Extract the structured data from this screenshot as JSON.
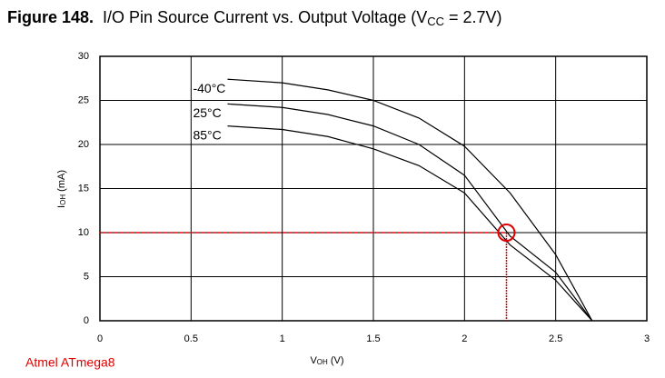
{
  "chart_data": {
    "type": "line",
    "title": {
      "label": "Figure 148.",
      "text": "I/O Pin Source Current vs. Output Voltage (V",
      "sub": "CC",
      "end": " = 2.7V)"
    },
    "x_label": {
      "text": "V",
      "sub": "OH",
      "end": " (V)"
    },
    "y_label": {
      "text": "I",
      "sub": "OH",
      "end": " (mA)"
    },
    "footer": "Atmel ATmega8",
    "x": [
      0.7,
      1.0,
      1.25,
      1.5,
      1.75,
      2.0,
      2.25,
      2.5,
      2.7
    ],
    "series": [
      {
        "name": "-40°C",
        "color": "#000000",
        "values": [
          27.4,
          27.0,
          26.2,
          25.0,
          23.0,
          19.8,
          14.5,
          7.5,
          0
        ]
      },
      {
        "name": "25°C",
        "color": "#000000",
        "values": [
          24.6,
          24.2,
          23.4,
          22.1,
          20.0,
          16.5,
          9.6,
          5.5,
          0
        ]
      },
      {
        "name": "85°C",
        "color": "#000000",
        "values": [
          22.1,
          21.7,
          20.9,
          19.5,
          17.6,
          14.5,
          8.6,
          4.6,
          0
        ]
      }
    ],
    "marker": {
      "x": 2.23,
      "y": 10,
      "color": "#e00000"
    },
    "xlim": [
      0,
      3
    ],
    "ylim": [
      0,
      30
    ],
    "xticks": [
      0,
      0.5,
      1,
      1.5,
      2,
      2.5,
      3
    ],
    "yticks": [
      0,
      5,
      10,
      15,
      20,
      25,
      30
    ],
    "grid": true
  }
}
